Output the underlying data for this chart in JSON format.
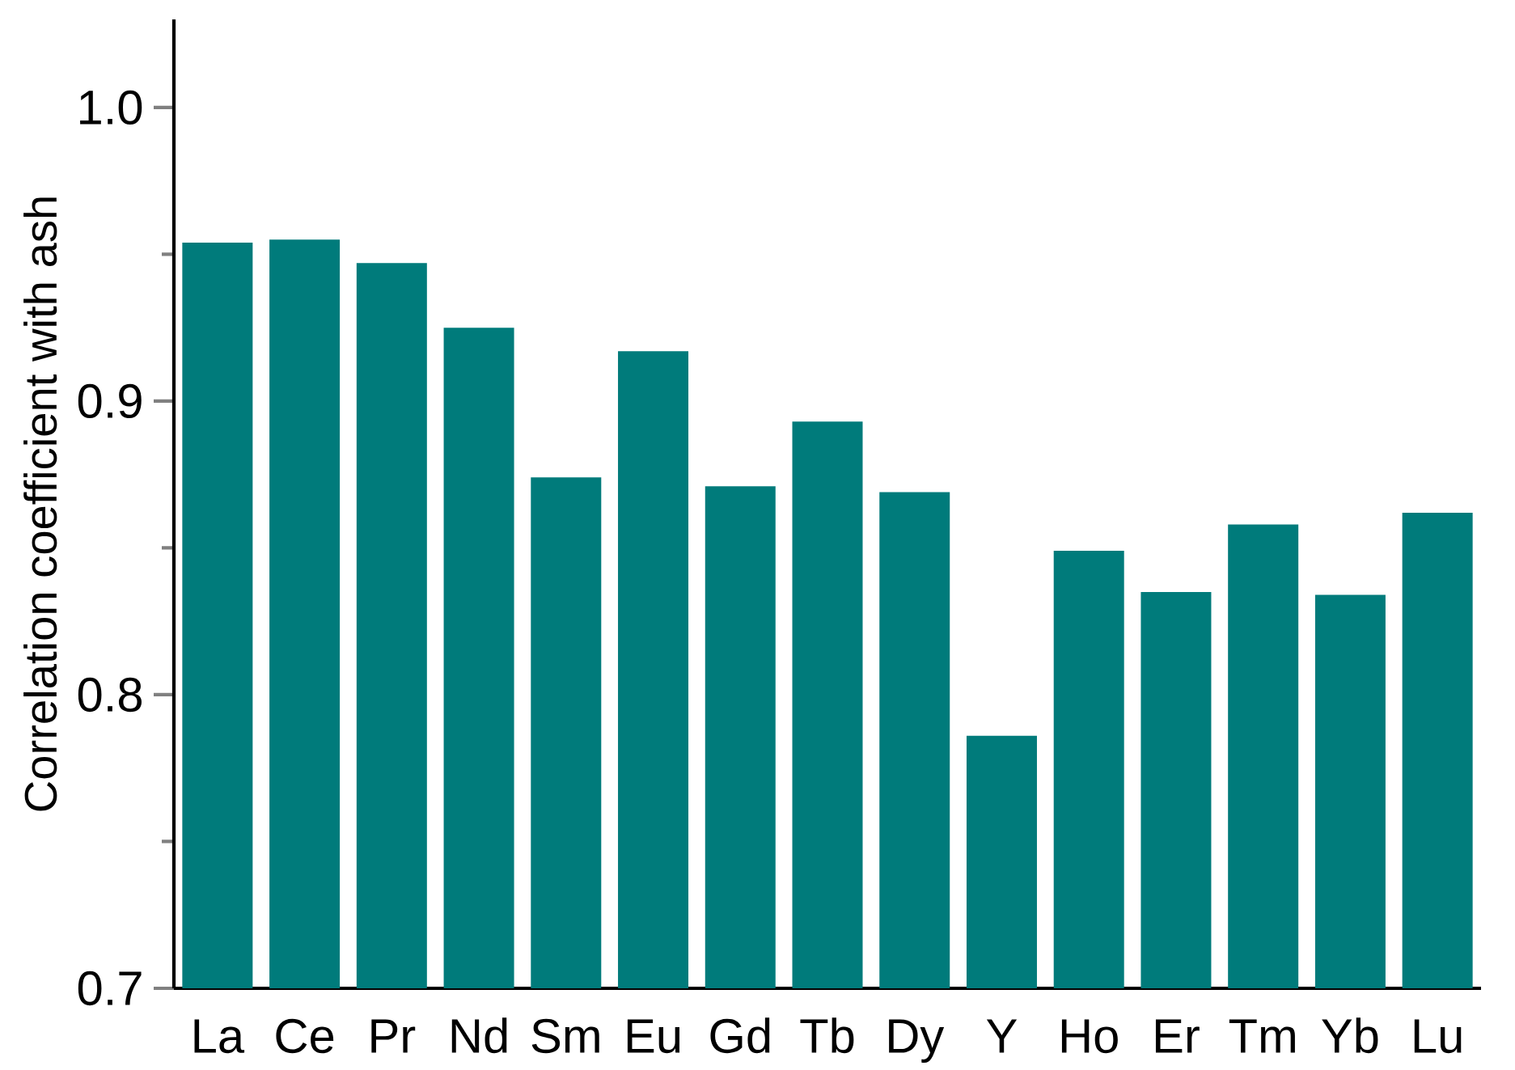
{
  "chart_data": {
    "type": "bar",
    "ylabel": "Correlation coefficient  with ash",
    "categories": [
      "La",
      "Ce",
      "Pr",
      "Nd",
      "Sm",
      "Eu",
      "Gd",
      "Tb",
      "Dy",
      "Y",
      "Ho",
      "Er",
      "Tm",
      "Yb",
      "Lu"
    ],
    "values": [
      0.954,
      0.955,
      0.947,
      0.925,
      0.874,
      0.917,
      0.871,
      0.893,
      0.869,
      0.786,
      0.849,
      0.835,
      0.858,
      0.834,
      0.862
    ],
    "color": "#007b7b",
    "ylim": [
      0.7,
      1.03
    ],
    "yticks": [
      0.7,
      0.8,
      0.9,
      {
        "value": 1.0,
        "label": "1.0"
      }
    ],
    "grid": false
  }
}
